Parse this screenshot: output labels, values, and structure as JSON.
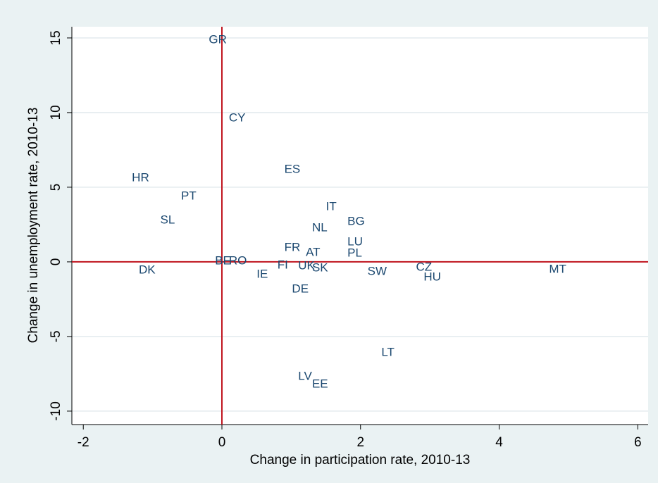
{
  "chart_data": {
    "type": "scatter",
    "x_label": "Change in participation rate, 2010-13",
    "y_label": "Change in unemployment rate, 2010-13",
    "labels": [
      "GR",
      "CY",
      "HR",
      "ES",
      "PT",
      "IT",
      "SL",
      "BG",
      "NL",
      "LU",
      "FR",
      "AT",
      "PL",
      "BE",
      "RO",
      "FI",
      "UK",
      "SK",
      "DK",
      "SW",
      "CZ",
      "HU",
      "MT",
      "IE",
      "DE",
      "LT",
      "LV",
      "EE"
    ],
    "x": [
      -0.24,
      0.05,
      -1.35,
      0.85,
      -0.64,
      1.45,
      -0.94,
      1.76,
      1.25,
      1.76,
      0.85,
      1.16,
      1.76,
      -0.15,
      0.05,
      0.75,
      1.05,
      1.25,
      -1.25,
      2.05,
      2.75,
      2.86,
      4.67,
      0.45,
      0.96,
      2.25,
      1.05,
      1.25
    ],
    "values": [
      14.86,
      9.62,
      5.61,
      6.18,
      4.39,
      3.68,
      2.78,
      2.69,
      2.26,
      1.32,
      0.94,
      0.61,
      0.57,
      0.05,
      0.05,
      -0.24,
      -0.28,
      -0.42,
      -0.57,
      -0.66,
      -0.38,
      -1.04,
      -0.52,
      -0.85,
      -1.84,
      -6.08,
      -7.69,
      -8.21
    ],
    "color": "#1a476f",
    "xlim": [
      -2.165,
      6.15
    ],
    "ylim": [
      -10.9,
      15.75
    ],
    "xticks": [
      -2,
      0,
      2,
      4,
      6
    ],
    "yticks": [
      -10,
      -5,
      0,
      5,
      10,
      15
    ],
    "grid": true,
    "xline": 0,
    "yline": 0,
    "refline_color": "#c0141e"
  }
}
